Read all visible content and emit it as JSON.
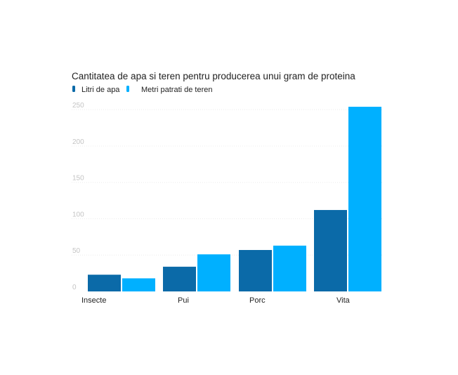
{
  "chart_data": {
    "type": "bar",
    "title": "Cantitatea de apa si teren pentru producerea unui gram de proteina",
    "xlabel": "",
    "ylabel": "",
    "categories": [
      "Insecte",
      "Pui",
      "Porc",
      "Vita"
    ],
    "series": [
      {
        "name": "Litri de apa",
        "color": "#0b6aa8",
        "values": [
          23,
          34,
          57,
          112
        ]
      },
      {
        "name": "Metri patrati de teren",
        "color": "#00b0ff",
        "values": [
          18,
          51,
          63,
          254
        ]
      }
    ],
    "yticks": [
      0,
      50,
      100,
      150,
      200,
      250
    ],
    "ylim": [
      0,
      255
    ],
    "grid": true,
    "legend_position": "top-left"
  }
}
